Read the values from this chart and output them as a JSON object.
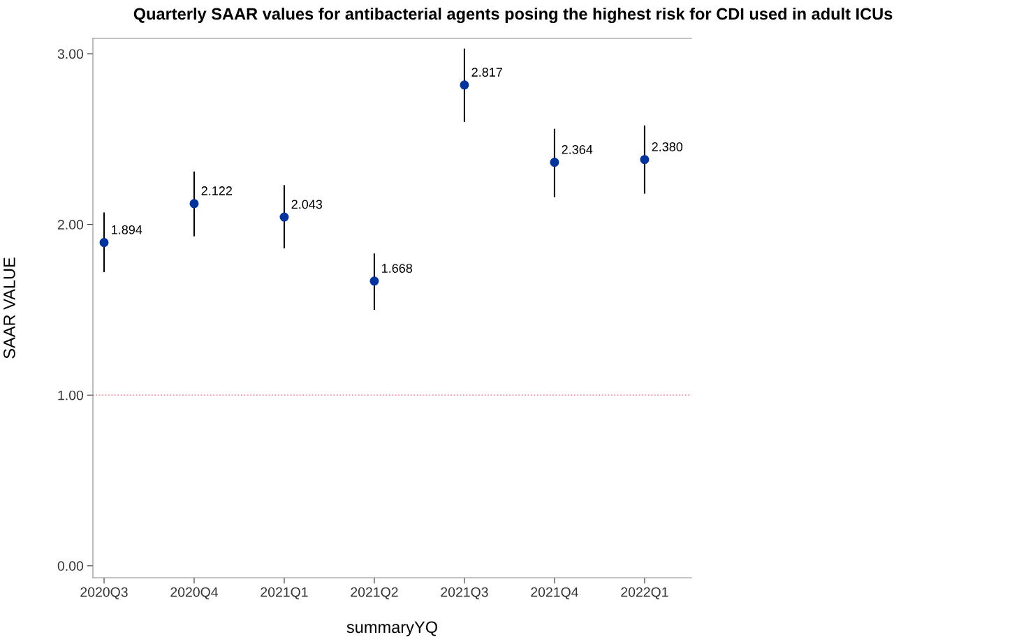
{
  "chart_data": {
    "type": "scatter",
    "title": "Quarterly SAAR values for antibacterial agents posing the highest risk for CDI used in adult ICUs",
    "xlabel": "summaryYQ",
    "ylabel": "SAAR VALUE",
    "categories": [
      "2020Q3",
      "2020Q4",
      "2021Q1",
      "2021Q2",
      "2021Q3",
      "2021Q4",
      "2022Q1"
    ],
    "series": [
      {
        "color": "#0033a0",
        "values": [
          1.894,
          2.122,
          2.043,
          1.668,
          2.817,
          2.364,
          2.38
        ],
        "value_labels": [
          "1.894",
          "2.122",
          "2.043",
          "1.668",
          "2.817",
          "2.364",
          "2.380"
        ],
        "errors": [
          [
            1.72,
            2.07
          ],
          [
            1.93,
            2.31
          ],
          [
            1.86,
            2.23
          ],
          [
            1.5,
            1.83
          ],
          [
            2.6,
            3.03
          ],
          [
            2.16,
            2.56
          ],
          [
            2.18,
            2.58
          ]
        ]
      }
    ],
    "ylim": [
      -0.07,
      3.09
    ],
    "yticks": [
      {
        "value": 0,
        "label": "0.00"
      },
      {
        "value": 1,
        "label": "1.00"
      },
      {
        "value": 2,
        "label": "2.00"
      },
      {
        "value": 3,
        "label": "3.00"
      }
    ],
    "ref_lines": [
      {
        "axis": "y",
        "value": 1,
        "color": "#f08080",
        "line_style": "dotted"
      }
    ],
    "marker": "circle",
    "grid": false,
    "legend": false
  }
}
